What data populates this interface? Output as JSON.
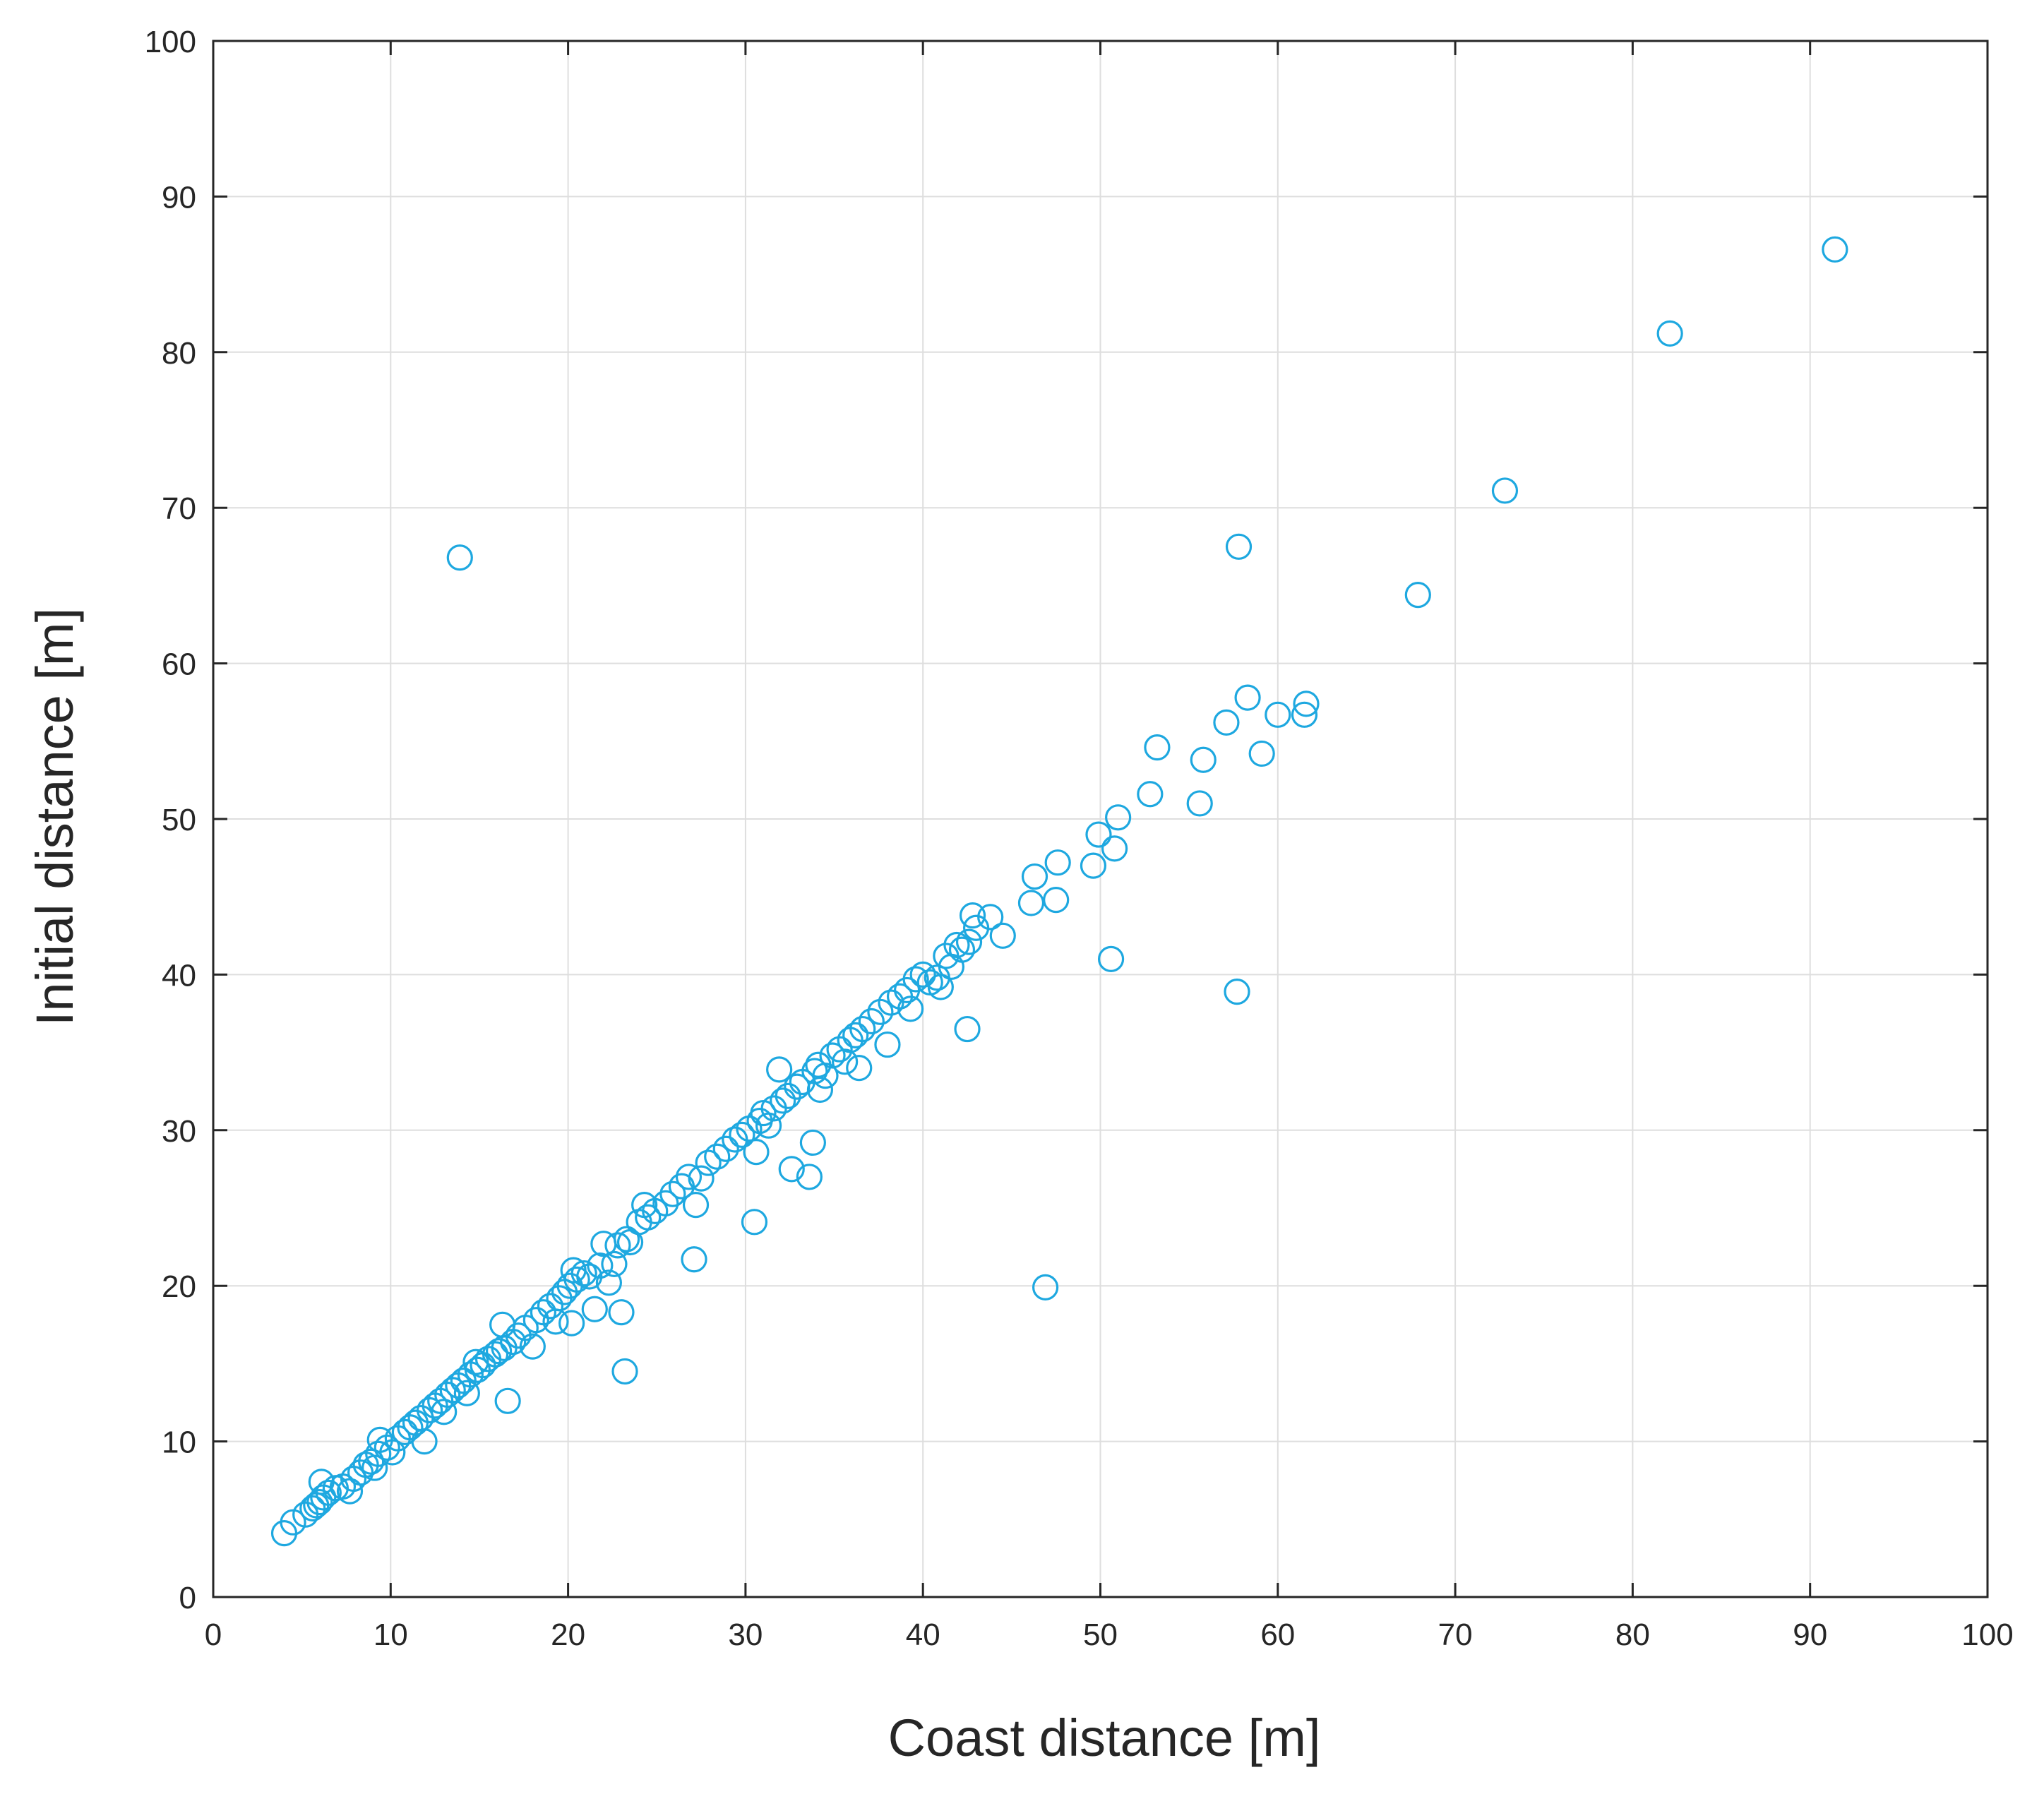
{
  "chart_data": {
    "type": "scatter",
    "title": "",
    "xlabel": "Coast distance [m]",
    "ylabel": "Initial distance [m]",
    "xlim": [
      0,
      100
    ],
    "ylim": [
      0,
      100
    ],
    "xticks": [
      0,
      10,
      20,
      30,
      40,
      50,
      60,
      70,
      80,
      90,
      100
    ],
    "yticks": [
      0,
      10,
      20,
      30,
      40,
      50,
      60,
      70,
      80,
      90,
      100
    ],
    "grid": true,
    "legend": "none",
    "marker": "circle-open",
    "color": "#1ea8e0",
    "series": [
      {
        "points": [
          [
            4.0,
            4.1
          ],
          [
            4.5,
            4.8
          ],
          [
            5.2,
            5.3
          ],
          [
            5.6,
            5.7
          ],
          [
            5.8,
            5.9
          ],
          [
            6.0,
            6.1
          ],
          [
            6.2,
            6.4
          ],
          [
            6.5,
            6.7
          ],
          [
            6.1,
            7.4
          ],
          [
            6.9,
            7.0
          ],
          [
            7.3,
            7.1
          ],
          [
            7.7,
            6.8
          ],
          [
            7.9,
            7.6
          ],
          [
            8.3,
            8.0
          ],
          [
            8.6,
            8.5
          ],
          [
            8.9,
            8.7
          ],
          [
            9.1,
            8.3
          ],
          [
            9.3,
            9.2
          ],
          [
            9.4,
            10.1
          ],
          [
            9.8,
            9.6
          ],
          [
            10.1,
            9.3
          ],
          [
            10.4,
            10.2
          ],
          [
            10.8,
            10.6
          ],
          [
            11.1,
            10.9
          ],
          [
            11.4,
            11.2
          ],
          [
            11.7,
            11.5
          ],
          [
            11.9,
            10.0
          ],
          [
            12.2,
            12.0
          ],
          [
            12.5,
            12.3
          ],
          [
            12.8,
            12.6
          ],
          [
            13.0,
            11.9
          ],
          [
            13.2,
            13.0
          ],
          [
            13.5,
            13.3
          ],
          [
            13.8,
            13.6
          ],
          [
            14.1,
            13.9
          ],
          [
            14.3,
            13.1
          ],
          [
            14.5,
            14.3
          ],
          [
            14.8,
            15.1
          ],
          [
            14.9,
            14.6
          ],
          [
            15.2,
            14.9
          ],
          [
            15.5,
            15.3
          ],
          [
            15.9,
            15.6
          ],
          [
            16.1,
            15.8
          ],
          [
            16.3,
            17.5
          ],
          [
            16.4,
            16.0
          ],
          [
            16.6,
            12.6
          ],
          [
            16.9,
            16.4
          ],
          [
            17.2,
            16.8
          ],
          [
            17.6,
            17.3
          ],
          [
            18.0,
            16.1
          ],
          [
            18.2,
            17.8
          ],
          [
            18.6,
            18.3
          ],
          [
            19.0,
            18.7
          ],
          [
            19.3,
            17.7
          ],
          [
            19.5,
            19.2
          ],
          [
            19.8,
            19.6
          ],
          [
            20.1,
            20.0
          ],
          [
            20.2,
            17.6
          ],
          [
            20.3,
            21.0
          ],
          [
            20.5,
            20.4
          ],
          [
            20.9,
            20.8
          ],
          [
            21.2,
            20.6
          ],
          [
            21.5,
            18.5
          ],
          [
            21.8,
            21.3
          ],
          [
            22.0,
            22.7
          ],
          [
            22.3,
            20.2
          ],
          [
            22.6,
            21.4
          ],
          [
            22.8,
            22.6
          ],
          [
            23.0,
            18.3
          ],
          [
            23.2,
            14.5
          ],
          [
            23.3,
            23.0
          ],
          [
            23.5,
            22.8
          ],
          [
            24.0,
            24.1
          ],
          [
            24.3,
            25.2
          ],
          [
            24.5,
            24.4
          ],
          [
            24.9,
            24.8
          ],
          [
            25.5,
            25.3
          ],
          [
            25.9,
            25.9
          ],
          [
            26.4,
            26.4
          ],
          [
            26.8,
            27.0
          ],
          [
            27.1,
            21.7
          ],
          [
            27.2,
            25.2
          ],
          [
            27.5,
            26.9
          ],
          [
            27.9,
            27.9
          ],
          [
            28.4,
            28.3
          ],
          [
            28.9,
            28.8
          ],
          [
            29.4,
            29.4
          ],
          [
            29.8,
            29.7
          ],
          [
            30.2,
            30.1
          ],
          [
            30.5,
            24.1
          ],
          [
            30.6,
            28.6
          ],
          [
            30.8,
            30.6
          ],
          [
            31.0,
            31.1
          ],
          [
            31.3,
            30.3
          ],
          [
            31.6,
            31.4
          ],
          [
            31.9,
            33.9
          ],
          [
            32.1,
            31.9
          ],
          [
            32.4,
            32.2
          ],
          [
            32.6,
            27.5
          ],
          [
            32.9,
            32.8
          ],
          [
            33.2,
            33.1
          ],
          [
            33.6,
            27.0
          ],
          [
            33.8,
            29.2
          ],
          [
            33.9,
            33.8
          ],
          [
            34.1,
            34.2
          ],
          [
            34.2,
            32.6
          ],
          [
            34.5,
            33.5
          ],
          [
            34.9,
            34.8
          ],
          [
            35.3,
            35.2
          ],
          [
            35.6,
            34.4
          ],
          [
            35.9,
            35.8
          ],
          [
            36.2,
            36.1
          ],
          [
            36.4,
            34.0
          ],
          [
            36.6,
            36.5
          ],
          [
            37.1,
            37.0
          ],
          [
            37.6,
            37.6
          ],
          [
            38.0,
            35.5
          ],
          [
            38.2,
            38.2
          ],
          [
            38.7,
            38.6
          ],
          [
            39.1,
            39.0
          ],
          [
            39.3,
            37.8
          ],
          [
            39.6,
            39.7
          ],
          [
            40.0,
            40.0
          ],
          [
            40.4,
            39.5
          ],
          [
            40.8,
            39.8
          ],
          [
            41.0,
            39.2
          ],
          [
            41.3,
            41.2
          ],
          [
            41.6,
            40.5
          ],
          [
            41.9,
            41.9
          ],
          [
            42.2,
            41.6
          ],
          [
            42.5,
            36.5
          ],
          [
            42.6,
            42.1
          ],
          [
            42.8,
            43.8
          ],
          [
            43.0,
            43.0
          ],
          [
            43.8,
            43.7
          ],
          [
            44.5,
            42.5
          ],
          [
            46.1,
            44.6
          ],
          [
            46.3,
            46.3
          ],
          [
            46.9,
            19.9
          ],
          [
            47.5,
            44.8
          ],
          [
            47.6,
            47.2
          ],
          [
            49.6,
            47.0
          ],
          [
            49.9,
            49.0
          ],
          [
            50.6,
            41.0
          ],
          [
            50.8,
            48.1
          ],
          [
            51.0,
            50.1
          ],
          [
            52.8,
            51.6
          ],
          [
            53.2,
            54.6
          ],
          [
            55.6,
            51.0
          ],
          [
            55.8,
            53.8
          ],
          [
            57.1,
            56.2
          ],
          [
            57.7,
            38.9
          ],
          [
            57.8,
            67.5
          ],
          [
            58.3,
            57.8
          ],
          [
            59.1,
            54.2
          ],
          [
            60.0,
            56.7
          ],
          [
            61.5,
            56.7
          ],
          [
            61.6,
            57.4
          ],
          [
            67.9,
            64.4
          ],
          [
            72.8,
            71.1
          ],
          [
            82.1,
            81.2
          ],
          [
            91.4,
            86.6
          ],
          [
            13.9,
            66.8
          ]
        ]
      }
    ]
  }
}
